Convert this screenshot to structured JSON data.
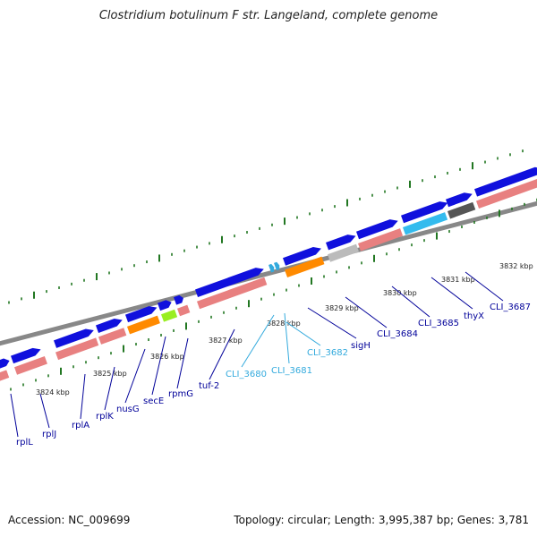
{
  "title": "Clostridium botulinum F str. Langeland, complete genome",
  "footer": {
    "accession": "Accession: NC_009699",
    "summary": "Topology: circular; Length: 3,995,387 bp; Genes: 3,781"
  },
  "colors": {
    "gene_blue": "#1010dd",
    "rrna_pink": "#e88080",
    "orange": "#ff8a00",
    "lime": "#99ee22",
    "cyan": "#33bbee",
    "light_gray": "#bbbbbb",
    "dark_gray": "#555555",
    "tick_green": "#227722",
    "label_navy": "#000099",
    "label_cyan": "#33aadd",
    "backbone": "#888888"
  },
  "scale_labels": [
    "3824 kbp",
    "3825 kbp",
    "3826 kbp",
    "3827 kbp",
    "3828 kbp",
    "3829 kbp",
    "3830 kbp",
    "3831 kbp",
    "3832 kbp"
  ],
  "gene_labels": [
    {
      "text": "rplL",
      "color": "navy"
    },
    {
      "text": "rplJ",
      "color": "navy"
    },
    {
      "text": "rplA",
      "color": "navy"
    },
    {
      "text": "rplK",
      "color": "navy"
    },
    {
      "text": "nusG",
      "color": "navy"
    },
    {
      "text": "secE",
      "color": "navy"
    },
    {
      "text": "rpmG",
      "color": "navy"
    },
    {
      "text": "tuf-2",
      "color": "navy"
    },
    {
      "text": "CLI_3680",
      "color": "cyan"
    },
    {
      "text": "CLI_3681",
      "color": "cyan"
    },
    {
      "text": "CLI_3682",
      "color": "cyan"
    },
    {
      "text": "sigH",
      "color": "navy"
    },
    {
      "text": "CLI_3684",
      "color": "navy"
    },
    {
      "text": "CLI_3685",
      "color": "navy"
    },
    {
      "text": "thyX",
      "color": "navy"
    },
    {
      "text": "CLI_3687",
      "color": "navy"
    }
  ]
}
